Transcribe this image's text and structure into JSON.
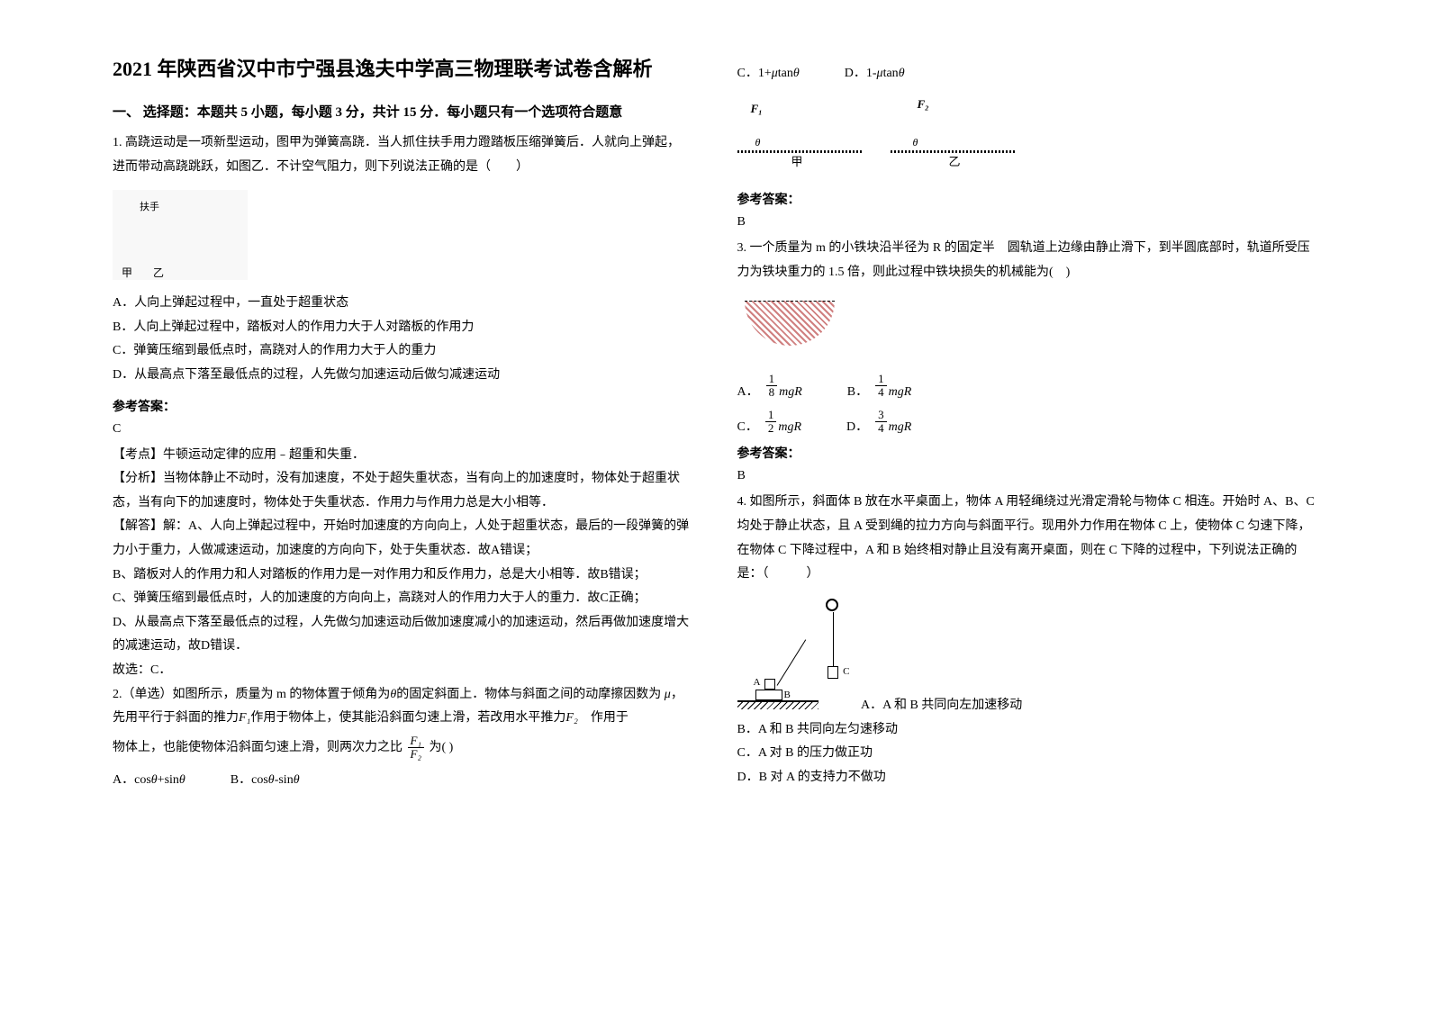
{
  "title": "2021 年陕西省汉中市宁强县逸夫中学高三物理联考试卷含解析",
  "section1_heading": "一、 选择题：本题共 5 小题，每小题 3 分，共计 15 分．每小题只有一个选项符合题意",
  "q1": {
    "stem": "1. 高跷运动是一项新型运动，图甲为弹簧高跷．当人抓住扶手用力蹬踏板压缩弹簧后．人就向上弹起，进而带动高跷跳跃，如图乙．不计空气阻力，则下列说法正确的是（　　）",
    "optA": "A．人向上弹起过程中，一直处于超重状态",
    "optB": "B．人向上弹起过程中，踏板对人的作用力大于人对踏板的作用力",
    "optC": "C．弹簧压缩到最低点时，高跷对人的作用力大于人的重力",
    "optD": "D．从最高点下落至最低点的过程，人先做匀加速运动后做匀减速运动",
    "answer_label": "参考答案：",
    "answer": "C",
    "kaodian": "【考点】牛顿运动定律的应用﹣超重和失重．",
    "fenxi": "【分析】当物体静止不动时，没有加速度，不处于超失重状态，当有向上的加速度时，物体处于超重状态，当有向下的加速度时，物体处于失重状态．作用力与作用力总是大小相等．",
    "jieda": "【解答】解：A、人向上弹起过程中，开始时加速度的方向向上，人处于超重状态，最后的一段弹簧的弹力小于重力，人做减速运动，加速度的方向向下，处于失重状态．故A错误；",
    "jiedaB": "B、踏板对人的作用力和人对踏板的作用力是一对作用力和反作用力，总是大小相等．故B错误；",
    "jiedaC": "C、弹簧压缩到最低点时，人的加速度的方向向上，高跷对人的作用力大于人的重力．故C正确；",
    "jiedaD": "D、从最高点下落至最低点的过程，人先做匀加速运动后做加速度减小的加速运动，然后再做加速度增大的减速运动，故D错误．",
    "guxuan": "故选：C．"
  },
  "q2": {
    "stem1": "2.（单选）如图所示，质量为 m 的物体置于倾角为",
    "stem2": "的固定斜面上．物体与斜面之间的动摩擦因数为",
    "stem3": "，先用平行于斜面的推力",
    "stem4": "作用于物体上，使其能沿斜面匀速上滑，若改用水平推力",
    "stem5": "　作用于",
    "stem6": "物体上，也能使物体沿斜面匀速上滑，则两次力之比",
    "stem7": "为(   )",
    "theta": "θ",
    "mu": "μ",
    "F1": "F₁",
    "F2": "F₂",
    "optA_pre": "A．cos",
    "optA_mid": " +sin",
    "optB_pre": "B．cos",
    "optB_mid": " -sin",
    "optC_pre": "C．1+",
    "optC_mid": " tan",
    "optD_pre": "D．1-",
    "optD_mid": " tan",
    "fig_jia": "甲",
    "fig_yi": "乙",
    "answer_label": "参考答案：",
    "answer": "B"
  },
  "q3": {
    "stem": "3. 一个质量为 m 的小铁块沿半径为 R 的固定半　圆轨道上边缘由静止滑下，到半圆底部时，轨道所受压力为铁块重力的 1.5 倍，则此过程中铁块损失的机械能为(　)",
    "optA_num": "1",
    "optA_den": "8",
    "optB_num": "1",
    "optB_den": "4",
    "optC_num": "1",
    "optC_den": "2",
    "optD_num": "3",
    "optD_den": "4",
    "mgR": "mgR",
    "A": "A．",
    "B": "B．",
    "C": "C．",
    "D": "D．",
    "answer_label": "参考答案：",
    "answer": "B"
  },
  "q4": {
    "stem": "4. 如图所示，斜面体 B 放在水平桌面上，物体 A 用轻绳绕过光滑定滑轮与物体 C 相连。开始时 A、B、C 均处于静止状态，且 A 受到绳的拉力方向与斜面平行。现用外力作用在物体 C 上，使物体 C 匀速下降，在物体 C 下降过程中，A 和 B 始终相对静止且没有离开桌面，则在 C 下降的过程中，下列说法正确的是：（　　　）",
    "optA": "A．A 和 B 共同向左加速移动",
    "optB": "B．A 和 B 共同向左匀速移动",
    "optC": "C．A 对 B 的压力做正功",
    "optD": "D．B 对 A 的支持力不做功",
    "labelA": "A",
    "labelB": "B",
    "labelC": "C"
  }
}
